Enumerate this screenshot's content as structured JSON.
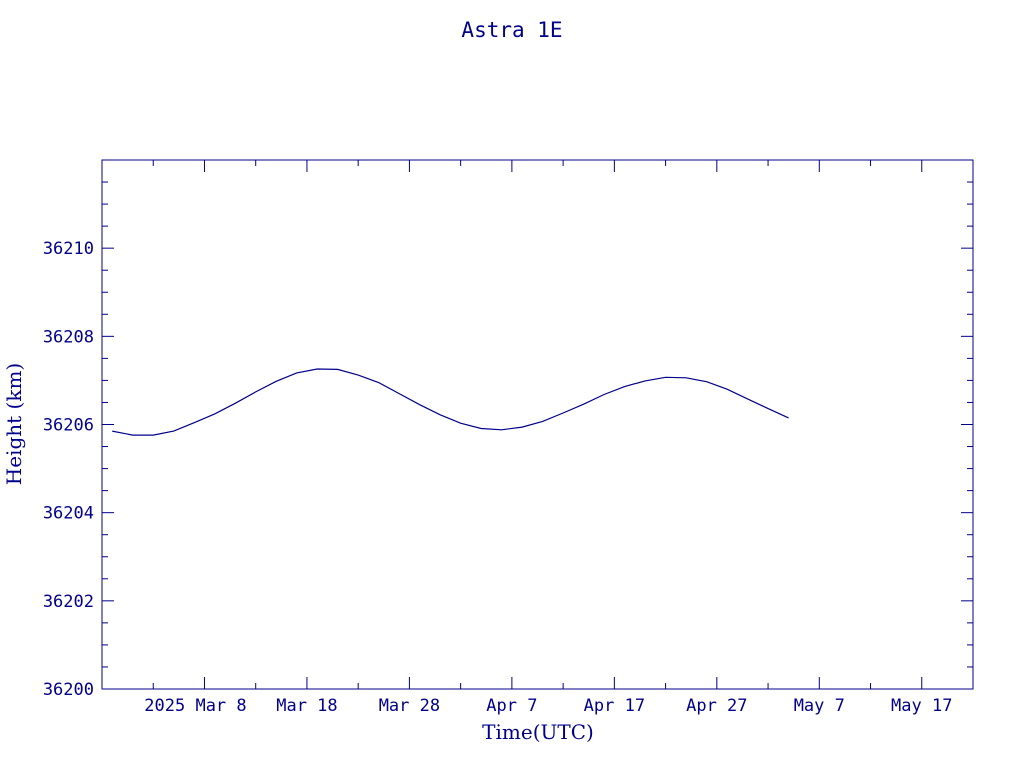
{
  "chart_data": {
    "type": "line",
    "title": "Astra 1E",
    "xlabel": "Time(UTC)",
    "ylabel": "Height (km)",
    "x_axis": {
      "type": "date",
      "min": "2025-02-26",
      "max": "2025-05-22",
      "ticks": [
        {
          "date": "2025-03-08",
          "label": "2025 Mar  8"
        },
        {
          "date": "2025-03-18",
          "label": "Mar 18"
        },
        {
          "date": "2025-03-28",
          "label": "Mar 28"
        },
        {
          "date": "2025-04-07",
          "label": "Apr  7"
        },
        {
          "date": "2025-04-17",
          "label": "Apr 17"
        },
        {
          "date": "2025-04-27",
          "label": "Apr 27"
        },
        {
          "date": "2025-05-07",
          "label": "May  7"
        },
        {
          "date": "2025-05-17",
          "label": "May 17"
        }
      ]
    },
    "ylim": [
      36200,
      36212
    ],
    "yticks": [
      36200,
      36202,
      36204,
      36206,
      36208,
      36210
    ],
    "grid": false,
    "line_color": "#00008b",
    "series": [
      {
        "x": [
          "2025-02-27",
          "2025-03-01",
          "2025-03-03",
          "2025-03-05",
          "2025-03-07",
          "2025-03-09",
          "2025-03-11",
          "2025-03-13",
          "2025-03-15",
          "2025-03-17",
          "2025-03-19",
          "2025-03-21",
          "2025-03-23",
          "2025-03-25",
          "2025-03-27",
          "2025-03-29",
          "2025-03-31",
          "2025-04-02",
          "2025-04-04",
          "2025-04-06",
          "2025-04-08",
          "2025-04-10",
          "2025-04-12",
          "2025-04-14",
          "2025-04-16",
          "2025-04-18",
          "2025-04-20",
          "2025-04-22",
          "2025-04-24",
          "2025-04-26",
          "2025-04-28",
          "2025-04-30",
          "2025-05-02",
          "2025-05-04"
        ],
        "y": [
          36205.85,
          36205.76,
          36205.76,
          36205.85,
          36206.04,
          36206.24,
          36206.48,
          36206.74,
          36206.98,
          36207.17,
          36207.26,
          36207.25,
          36207.12,
          36206.95,
          36206.7,
          36206.45,
          36206.22,
          36206.03,
          36205.91,
          36205.88,
          36205.94,
          36206.07,
          36206.26,
          36206.46,
          36206.68,
          36206.86,
          36206.99,
          36207.07,
          36207.06,
          36206.97,
          36206.8,
          36206.58,
          36206.36,
          36206.15
        ]
      }
    ]
  }
}
